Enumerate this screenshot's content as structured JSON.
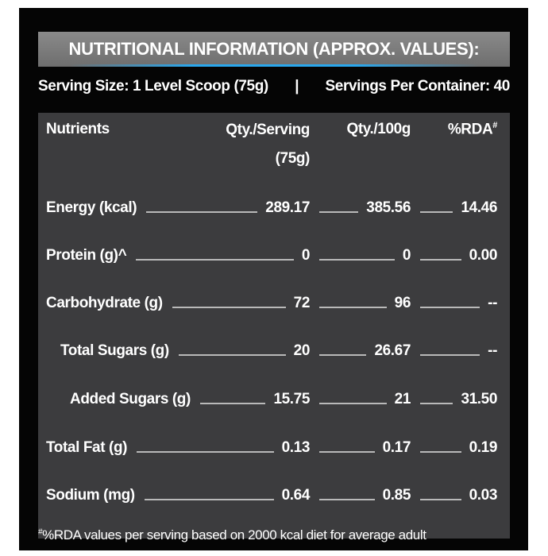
{
  "title": "NUTRITIONAL INFORMATION (APPROX. VALUES):",
  "serving": {
    "size": "Serving Size: 1 Level Scoop (75g)",
    "separator": "|",
    "per_container": "Servings Per Container: 40"
  },
  "headers": {
    "nutrients": "Nutrients",
    "per_serving": "Qty./Serving",
    "per_serving_unit": "(75g)",
    "per_100g": "Qty./100g",
    "rda": "%RDA",
    "rda_mark": "#"
  },
  "rows": [
    {
      "name": "Energy (kcal)",
      "serving": "289.17",
      "per100": "385.56",
      "rda": "14.46"
    },
    {
      "name": "Protein (g)^",
      "serving": "0",
      "per100": "0",
      "rda": "0.00"
    },
    {
      "name": "Carbohydrate (g)",
      "serving": "72",
      "per100": "96",
      "rda": "--"
    },
    {
      "name": "Total Sugars (g)",
      "serving": "20",
      "per100": "26.67",
      "rda": "--"
    },
    {
      "name": "Added Sugars (g)",
      "serving": "15.75",
      "per100": "21",
      "rda": "31.50"
    },
    {
      "name": "Total Fat (g)",
      "serving": "0.13",
      "per100": "0.17",
      "rda": "0.19"
    },
    {
      "name": "Sodium (mg)",
      "serving": "0.64",
      "per100": "0.85",
      "rda": "0.03"
    }
  ],
  "footer": {
    "mark": "#",
    "text": "%RDA values per serving based on 2000 kcal diet for average adult"
  },
  "colors": {
    "background": "#050505",
    "table": "#3c3c3e",
    "title_bar": "#7a7a7a",
    "accent": "#2aa8ee"
  }
}
